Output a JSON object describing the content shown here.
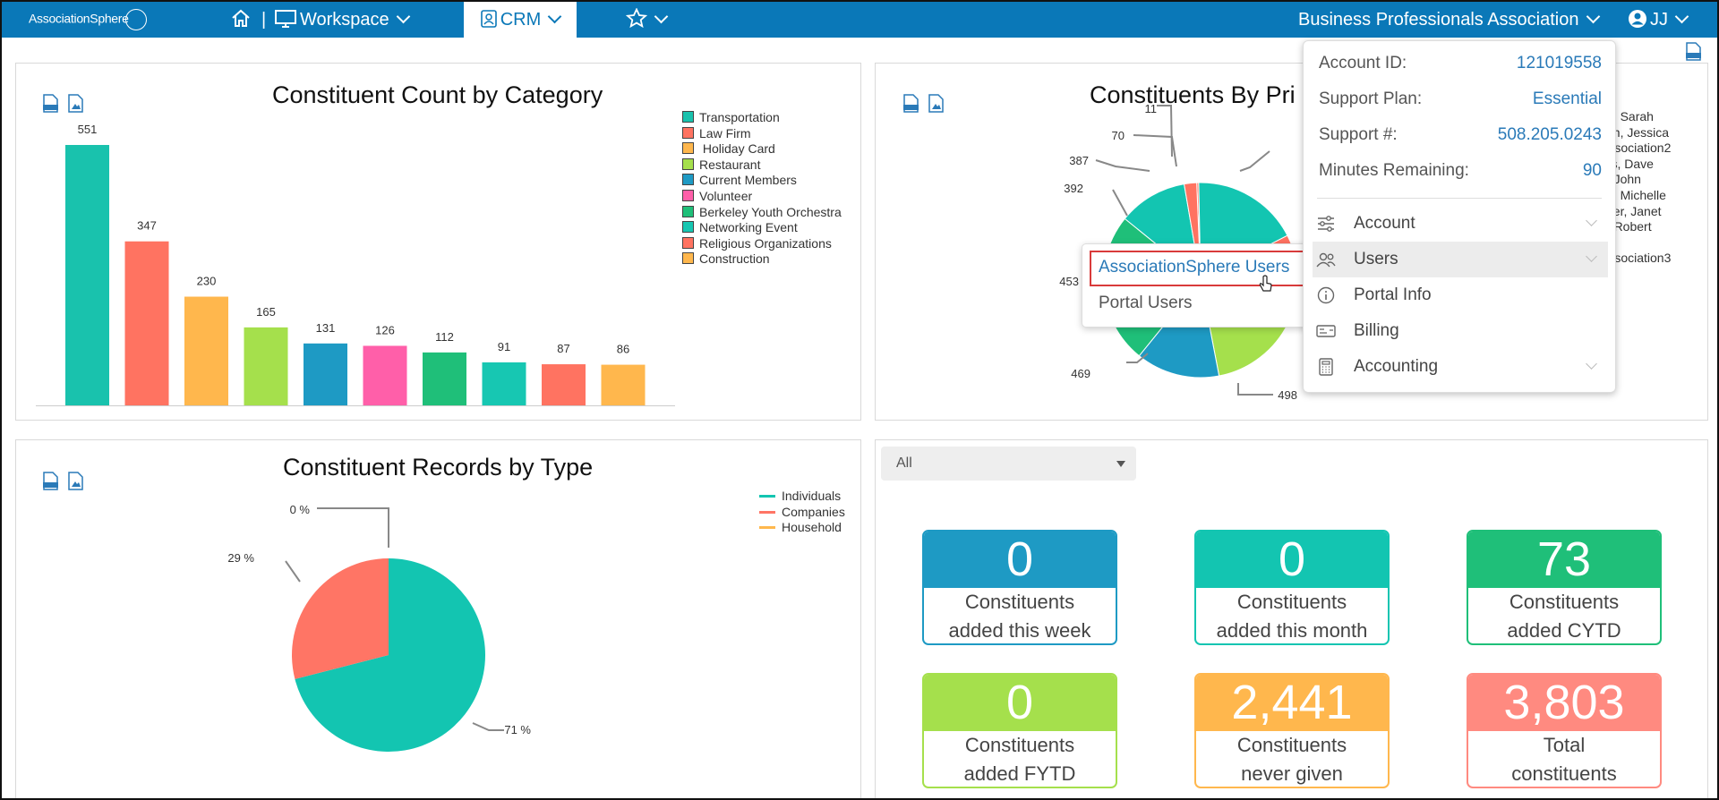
{
  "header": {
    "logo": "AssociationSphere",
    "workspace_label": "Workspace",
    "crm_label": "CRM",
    "org_name": "Business Professionals Association",
    "user_initials": "JJ",
    "separator": "|"
  },
  "charts": {
    "category": {
      "title": "Constituent Count by Category"
    },
    "primary": {
      "title": "Constituents By Pri",
      "legend_fragments": [
        "ns, Sarah",
        "son, Jessica",
        "Association2",
        "ers, Dave",
        "n, John",
        "ns, Michelle",
        "cher, Janet",
        "n, Robert",
        "Association3"
      ],
      "labels": [
        "11",
        "70",
        "387",
        "392",
        "453",
        "469",
        "498"
      ]
    },
    "records": {
      "title": "Constituent Records by Type",
      "labels": [
        "0 %",
        "29 %",
        "71 %"
      ]
    }
  },
  "chart_data": [
    {
      "type": "bar",
      "title": "Constituent Count by Category",
      "categories": [
        "Transportation",
        "Law Firm",
        " Holiday Card",
        "Restaurant",
        "Current Members",
        "Volunteer",
        "Berkeley Youth Orchestra",
        "Networking Event",
        "Religious Organizations",
        "Construction"
      ],
      "values": [
        551,
        347,
        230,
        165,
        131,
        126,
        112,
        91,
        87,
        86
      ],
      "colors": [
        "#19c2ad",
        "#ff7361",
        "#ffb74d",
        "#a5e04c",
        "#1e9ac4",
        "#ff5fa9",
        "#1fbf79",
        "#17c7b2",
        "#ff7361",
        "#ffb74d"
      ],
      "ylim": [
        0,
        551
      ],
      "grid": false,
      "legend": "right"
    },
    {
      "type": "pie",
      "title": "Constituent Records by Type",
      "categories": [
        "Individuals",
        "Companies",
        "Household"
      ],
      "values": [
        71,
        29,
        0
      ],
      "colors": [
        "#13c5b1",
        "#ff7565",
        "#ffb84d"
      ],
      "legend": "top-right"
    },
    {
      "type": "pie",
      "title": "Constituents By Pri",
      "values": [
        498,
        469,
        453,
        392,
        387,
        70,
        11
      ],
      "colors": [
        "#a5e04c",
        "#1e9ac4",
        "#1fbf79",
        "#1fbf79",
        "#13c5b1",
        "#ff7361",
        "#ff7361"
      ]
    }
  ],
  "filter": {
    "selected": "All"
  },
  "stats": [
    {
      "value": "0",
      "line1": "Constituents",
      "line2": "added this week",
      "color": "#1e9ac4"
    },
    {
      "value": "0",
      "line1": "Constituents",
      "line2": "added this month",
      "color": "#13c5b1"
    },
    {
      "value": "73",
      "line1": "Constituents",
      "line2": "added CYTD",
      "color": "#1fbf79"
    },
    {
      "value": "0",
      "line1": "Constituents",
      "line2": "added FYTD",
      "color": "#a5e04c"
    },
    {
      "value": "2,441",
      "line1": "Constituents",
      "line2": "never given",
      "color": "#ffb74d"
    },
    {
      "value": "3,803",
      "line1": "Total",
      "line2": "constituents",
      "color": "#ff8a80"
    }
  ],
  "account_menu": {
    "account_id_label": "Account ID:",
    "account_id": "121019558",
    "support_plan_label": "Support Plan:",
    "support_plan": "Essential",
    "support_num_label": "Support #:",
    "support_num": "508.205.0243",
    "minutes_label": "Minutes Remaining:",
    "minutes": "90",
    "items": [
      "Account",
      "Users",
      "Portal Info",
      "Billing",
      "Accounting"
    ]
  },
  "users_submenu": {
    "items": [
      "AssociationSphere Users",
      "Portal Users"
    ]
  },
  "icons": {
    "pdf": "pdf-icon",
    "image": "image-icon",
    "home": "home-icon",
    "monitor": "monitor-icon",
    "contact_card": "contact-card-icon",
    "star": "star-icon",
    "user_circle": "user-circle-icon"
  }
}
